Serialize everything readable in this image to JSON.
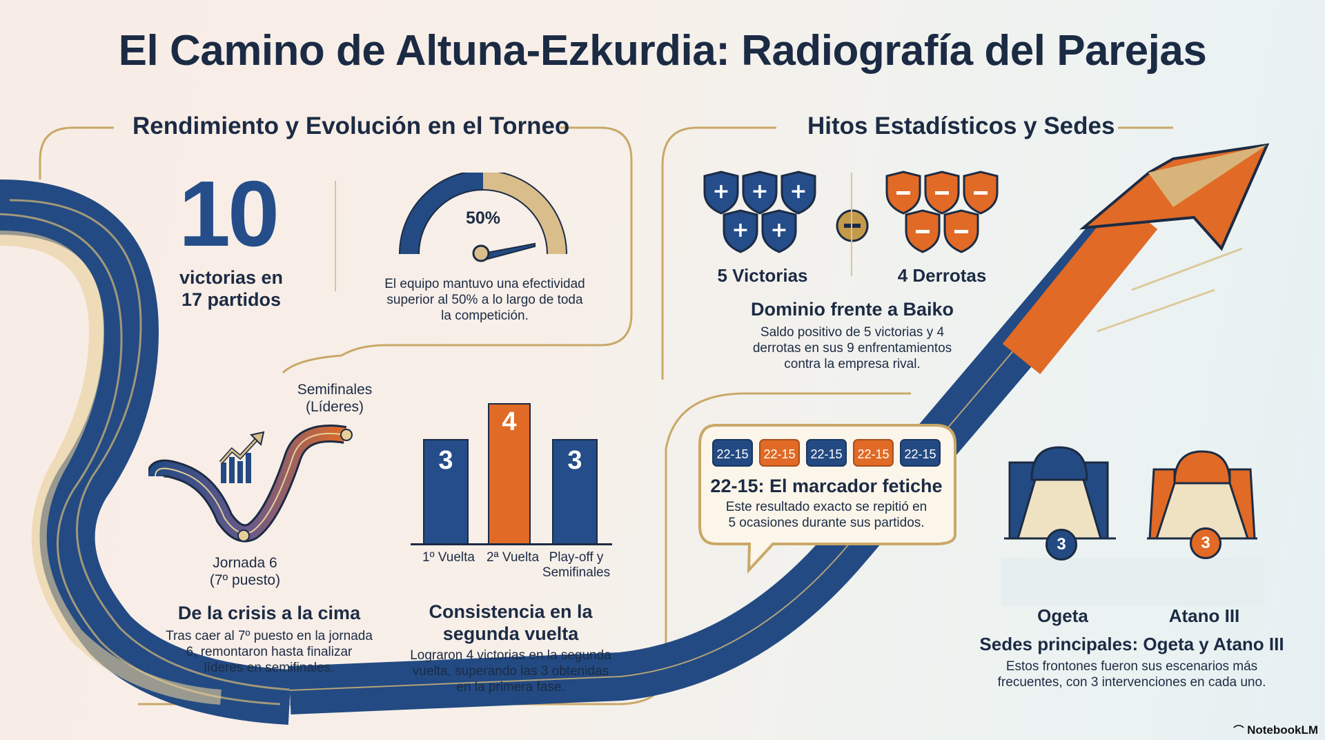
{
  "title": "El Camino de Altuna-Ezkurdia: Radiografía del Parejas",
  "left_section": {
    "title": "Rendimiento y Evolución en el Torneo",
    "wins_number": "10",
    "wins_text_line1": "victorias en",
    "wins_text_line2": "17 partidos",
    "gauge_label": "50%",
    "gauge_value_percent": 50,
    "gauge_desc_line1": "El equipo mantuvo una efectividad",
    "gauge_desc_line2": "superior al 50% a lo largo de toda",
    "gauge_desc_line3": "la competición."
  },
  "crisis": {
    "top_label_line1": "Semifinales",
    "top_label_line2": "(Líderes)",
    "bottom_label_line1": "Jornada 6",
    "bottom_label_line2": "(7º puesto)",
    "heading": "De la crisis a la cima",
    "desc_line1": "Tras caer al 7º puesto en la jornada",
    "desc_line2": "6, remontaron hasta finalizar",
    "desc_line3": "líderes en semifinales."
  },
  "consistency": {
    "heading_line1": "Consistencia en la",
    "heading_line2": "segunda vuelta",
    "desc_line1": "Lograron 4 victorias en la segunda",
    "desc_line2": "vuelta, superando las 3 obtenidas",
    "desc_line3": "en la primera fase.",
    "bars": [
      {
        "value": "3",
        "label": "1º Vuelta",
        "color": "#244d8a"
      },
      {
        "value": "4",
        "label": "2ª Vuelta",
        "color": "#e06a26"
      },
      {
        "value": "3",
        "label_line1": "Play-off y",
        "label_line2": "Semifinales",
        "color": "#244d8a"
      }
    ]
  },
  "right_section": {
    "title": "Hitos Estadísticos y Sedes",
    "victories_label": "5 Victorias",
    "defeats_label": "4 Derrotas",
    "heading": "Dominio frente a Baiko",
    "desc_line1": "Saldo positivo de 5 victorias y 4",
    "desc_line2": "derrotas en sus 9 enfrentamientos",
    "desc_line3": "contra la empresa rival.",
    "win_shields": 5,
    "loss_shields": 4,
    "blue": "#244d8a",
    "orange": "#e06a26"
  },
  "score": {
    "chips": [
      "22-15",
      "22-15",
      "22-15",
      "22-15",
      "22-15"
    ],
    "heading": "22-15: El marcador fetiche",
    "desc_line1": "Este resultado exacto se repitió en",
    "desc_line2": "5 ocasiones durante sus partidos."
  },
  "venues": {
    "venue1_name": "Ogeta",
    "venue1_count": "3",
    "venue2_name": "Atano III",
    "venue2_count": "3",
    "heading": "Sedes principales: Ogeta y Atano III",
    "desc_line1": "Estos frontones fueron sus escenarios más",
    "desc_line2": "frecuentes, con 3 intervenciones en cada uno."
  },
  "watermark": "NotebookLM"
}
